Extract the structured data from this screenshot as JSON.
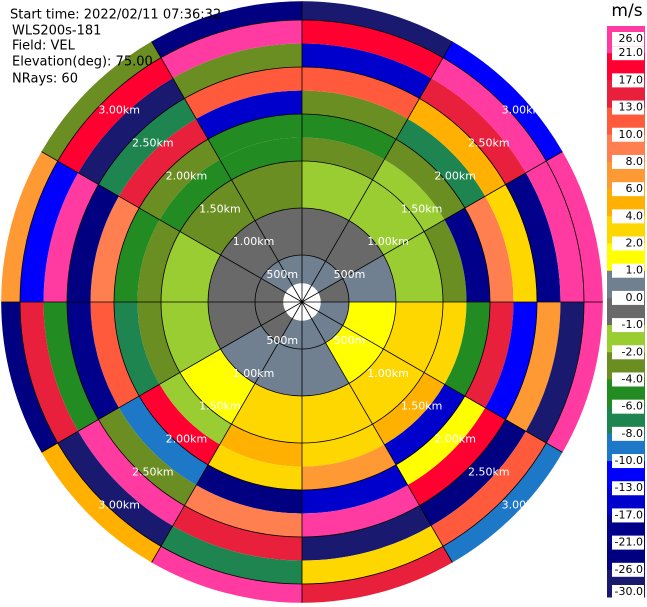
{
  "chart_data": {
    "type": "ppi",
    "header": [
      "Start time: 2022/02/11 07:36:32",
      "WLS200s-181",
      "Field: VEL",
      "Elevation(deg): 75.00",
      "NRays: 60"
    ],
    "rings": [
      {
        "value": 0.5,
        "label": "500m"
      },
      {
        "value": 1.0,
        "label": "1.00km"
      },
      {
        "value": 1.5,
        "label": "1.50km"
      },
      {
        "value": 2.0,
        "label": "2.00km"
      },
      {
        "value": 2.5,
        "label": "2.50km"
      },
      {
        "value": 3.0,
        "label": "3.00km"
      }
    ],
    "field": {
      "azimuths": [
        0,
        30,
        60,
        90,
        120,
        150,
        180,
        210,
        240,
        270,
        300,
        330,
        360
      ],
      "ranges": [
        0.2,
        0.5,
        1.0,
        1.5,
        1.75,
        2.0,
        2.25,
        2.5,
        2.75,
        3.0,
        3.2
      ],
      "values": [
        [
          0.5,
          -0.5,
          -1.5,
          -3,
          -5,
          -3,
          12,
          -15,
          20,
          -28
        ],
        [
          0.5,
          -0.5,
          -1.5,
          -1.5,
          -3,
          -7,
          5,
          15,
          25,
          -12
        ],
        [
          -0.5,
          0.5,
          -1.5,
          -3,
          -20,
          9,
          3,
          -18,
          22,
          27
        ],
        [
          0.5,
          1.5,
          3,
          2.5,
          -5,
          15,
          -11,
          7,
          -28,
          24
        ],
        [
          0.5,
          1.5,
          3,
          5,
          -14,
          1.5,
          19,
          -23,
          11,
          -9
        ],
        [
          0.5,
          0.5,
          3,
          3,
          7,
          -15,
          22,
          -28,
          3,
          14
        ],
        [
          0.5,
          0.5,
          3,
          5,
          3,
          -24,
          9,
          15,
          -7,
          27
        ],
        [
          -0.5,
          0.5,
          1.5,
          -1.5,
          18,
          -9,
          -3,
          23,
          -28,
          5
        ],
        [
          -0.5,
          -0.5,
          -1.5,
          -3,
          -7,
          12,
          -19,
          -5,
          15,
          -25
        ],
        [
          -0.5,
          -0.5,
          -1.5,
          -3,
          -5,
          9,
          -22,
          27,
          -11,
          7
        ],
        [
          0.5,
          -0.5,
          -3,
          -5,
          -3,
          15,
          -7,
          -28,
          19,
          -3
        ],
        [
          0.5,
          -0.5,
          -3,
          -5,
          -5,
          -15,
          11,
          -2.5,
          27,
          -23
        ]
      ]
    },
    "colorbar": {
      "unit": "m/s",
      "ticks": [
        {
          "value": 26,
          "label": "26.0"
        },
        {
          "value": 21,
          "label": "21.0"
        },
        {
          "value": 17,
          "label": "17.0"
        },
        {
          "value": 13,
          "label": "13.0"
        },
        {
          "value": 10,
          "label": "10.0"
        },
        {
          "value": 8,
          "label": "8.0"
        },
        {
          "value": 6,
          "label": "6.0"
        },
        {
          "value": 4,
          "label": "4.0"
        },
        {
          "value": 2,
          "label": "2.0"
        },
        {
          "value": 1,
          "label": "1.0"
        },
        {
          "value": 0,
          "label": "0.0"
        },
        {
          "value": -1,
          "label": "-1.0"
        },
        {
          "value": -2,
          "label": "-2.0"
        },
        {
          "value": -4,
          "label": "-4.0"
        },
        {
          "value": -6,
          "label": "-6.0"
        },
        {
          "value": -8,
          "label": "-8.0"
        },
        {
          "value": -10,
          "label": "-10.0"
        },
        {
          "value": -13,
          "label": "-13.0"
        },
        {
          "value": -17,
          "label": "-17.0"
        },
        {
          "value": -21,
          "label": "-21.0"
        },
        {
          "value": -26,
          "label": "-26.0"
        },
        {
          "value": -30,
          "label": "-30.0"
        }
      ],
      "colors": [
        "#ff3aa0",
        "#ff0030",
        "#e8203c",
        "#ff5a3c",
        "#ff7f50",
        "#ff9933",
        "#ffb000",
        "#ffd700",
        "#ffff00",
        "#708090",
        "#696969",
        "#9acd32",
        "#6b8e23",
        "#228b22",
        "#1e8450",
        "#1e78c8",
        "#0000ff",
        "#0000cd",
        "#00008b",
        "#000080",
        "#191970"
      ]
    }
  }
}
